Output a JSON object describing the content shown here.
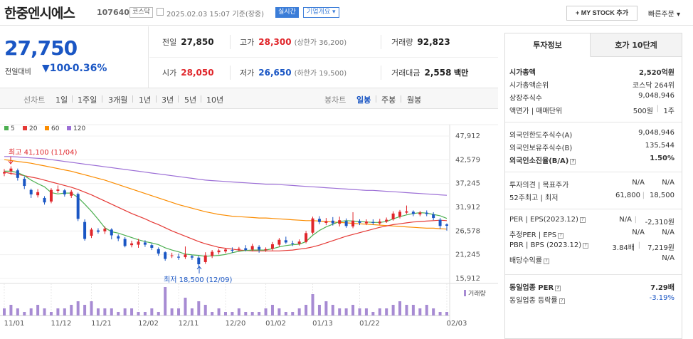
{
  "header": {
    "name": "한중엔시에스",
    "code": "107640",
    "market_tag": "코스닥",
    "date_text": "2025.02.03 15:07 기준(장중)",
    "live_label": "실시간",
    "corp_overview_label": "기업개요",
    "my_stock_label": "+ MY STOCK 추가",
    "quick_order_label": "빠른주문"
  },
  "price": {
    "current": "27,750",
    "change_label": "전일대비",
    "change_amount": "▼100",
    "change_percent": "-0.36%"
  },
  "stats": {
    "prev_close": {
      "label": "전일",
      "value": "27,850"
    },
    "high": {
      "label": "고가",
      "value": "28,300",
      "sub": "(상한가 36,200)"
    },
    "volume": {
      "label": "거래량",
      "value": "92,823"
    },
    "open": {
      "label": "시가",
      "value": "28,050"
    },
    "low": {
      "label": "저가",
      "value": "26,650",
      "sub": "(하한가 19,500)"
    },
    "amount": {
      "label": "거래대금",
      "value": "2,558",
      "unit": "백만"
    }
  },
  "chart_toolbar": {
    "line_chart_label": "선차트",
    "periods": [
      "1일",
      "1주일",
      "3개월",
      "1년",
      "3년",
      "5년",
      "10년"
    ],
    "candle_chart_label": "봉차트",
    "candle_periods": [
      "일봉",
      "주봉",
      "월봉"
    ],
    "active_candle": "일봉"
  },
  "ma_legend": [
    {
      "label": "5",
      "color": "#4caf50"
    },
    {
      "label": "20",
      "color": "#e53935"
    },
    {
      "label": "60",
      "color": "#fb8c00"
    },
    {
      "label": "120",
      "color": "#9c6fd6"
    }
  ],
  "chart_data": {
    "type": "candlestick",
    "y_ticks": [
      "47,912",
      "42,579",
      "37,245",
      "31,912",
      "26,578",
      "21,245",
      "15,912"
    ],
    "ylim": [
      15912,
      47912
    ],
    "x_ticks": [
      "11/01",
      "11/12",
      "11/21",
      "12/02",
      "12/11",
      "12/20",
      "01/02",
      "01/13",
      "01/22",
      "02/03"
    ],
    "high_annotation": "최고 41,100 (11/04)",
    "low_annotation": "최저 18,500 (12/09)",
    "volume_legend": "거래량",
    "candles": [
      {
        "o": 39500,
        "c": 39800,
        "h": 40500,
        "l": 38900
      },
      {
        "o": 40000,
        "c": 40600,
        "h": 41100,
        "l": 39200
      },
      {
        "o": 40200,
        "c": 38500,
        "h": 40600,
        "l": 37900
      },
      {
        "o": 38300,
        "c": 36700,
        "h": 38800,
        "l": 36000
      },
      {
        "o": 35800,
        "c": 34800,
        "h": 36100,
        "l": 34000
      },
      {
        "o": 34600,
        "c": 35300,
        "h": 36000,
        "l": 34100
      },
      {
        "o": 34000,
        "c": 33000,
        "h": 34400,
        "l": 32500
      },
      {
        "o": 33200,
        "c": 35800,
        "h": 36200,
        "l": 32800
      },
      {
        "o": 35600,
        "c": 35900,
        "h": 36800,
        "l": 35100
      },
      {
        "o": 35700,
        "c": 34800,
        "h": 36000,
        "l": 34300
      },
      {
        "o": 34500,
        "c": 35400,
        "h": 35800,
        "l": 34000
      },
      {
        "o": 34900,
        "c": 29300,
        "h": 35200,
        "l": 28800
      },
      {
        "o": 28600,
        "c": 24800,
        "h": 29200,
        "l": 24400
      },
      {
        "o": 25500,
        "c": 26900,
        "h": 27300,
        "l": 25000
      },
      {
        "o": 26700,
        "c": 26400,
        "h": 27200,
        "l": 26000
      },
      {
        "o": 26500,
        "c": 27100,
        "h": 27600,
        "l": 25900
      },
      {
        "o": 26900,
        "c": 25600,
        "h": 27200,
        "l": 24700
      },
      {
        "o": 25400,
        "c": 24900,
        "h": 25800,
        "l": 24300
      },
      {
        "o": 24800,
        "c": 23200,
        "h": 25200,
        "l": 22900
      },
      {
        "o": 23400,
        "c": 23800,
        "h": 24400,
        "l": 22900
      },
      {
        "o": 23500,
        "c": 24200,
        "h": 24800,
        "l": 22800
      },
      {
        "o": 24000,
        "c": 23500,
        "h": 24500,
        "l": 23000
      },
      {
        "o": 23400,
        "c": 22800,
        "h": 23800,
        "l": 22300
      },
      {
        "o": 22500,
        "c": 21500,
        "h": 22900,
        "l": 21000
      },
      {
        "o": 21800,
        "c": 20300,
        "h": 22000,
        "l": 19900
      },
      {
        "o": 21000,
        "c": 21100,
        "h": 21700,
        "l": 20500
      },
      {
        "o": 20800,
        "c": 20600,
        "h": 21500,
        "l": 20100
      },
      {
        "o": 20700,
        "c": 21300,
        "h": 23100,
        "l": 20300
      },
      {
        "o": 20900,
        "c": 20600,
        "h": 21200,
        "l": 20100
      },
      {
        "o": 20600,
        "c": 19100,
        "h": 21000,
        "l": 18500
      },
      {
        "o": 19600,
        "c": 21100,
        "h": 21800,
        "l": 19200
      },
      {
        "o": 21000,
        "c": 21900,
        "h": 22300,
        "l": 20500
      },
      {
        "o": 21800,
        "c": 22200,
        "h": 22600,
        "l": 21300
      },
      {
        "o": 22000,
        "c": 22400,
        "h": 22800,
        "l": 21600
      },
      {
        "o": 22300,
        "c": 22200,
        "h": 22900,
        "l": 21700
      },
      {
        "o": 22400,
        "c": 22600,
        "h": 23000,
        "l": 22000
      },
      {
        "o": 22700,
        "c": 22300,
        "h": 23400,
        "l": 22000
      },
      {
        "o": 22400,
        "c": 23200,
        "h": 23700,
        "l": 22000
      },
      {
        "o": 23000,
        "c": 22400,
        "h": 23400,
        "l": 21700
      },
      {
        "o": 22300,
        "c": 22500,
        "h": 22900,
        "l": 21900
      },
      {
        "o": 22600,
        "c": 23600,
        "h": 24100,
        "l": 22200
      },
      {
        "o": 23500,
        "c": 24600,
        "h": 25000,
        "l": 23100
      },
      {
        "o": 24500,
        "c": 24000,
        "h": 25300,
        "l": 23700
      },
      {
        "o": 23900,
        "c": 23800,
        "h": 24400,
        "l": 23200
      },
      {
        "o": 23700,
        "c": 24200,
        "h": 24700,
        "l": 23300
      },
      {
        "o": 24100,
        "c": 26100,
        "h": 26600,
        "l": 23800
      },
      {
        "o": 26200,
        "c": 29400,
        "h": 29800,
        "l": 25800
      },
      {
        "o": 29300,
        "c": 28600,
        "h": 29900,
        "l": 28100
      },
      {
        "o": 28400,
        "c": 28800,
        "h": 29500,
        "l": 27900
      },
      {
        "o": 28900,
        "c": 28300,
        "h": 29700,
        "l": 27800
      },
      {
        "o": 28200,
        "c": 29000,
        "h": 29800,
        "l": 27600
      },
      {
        "o": 28800,
        "c": 27700,
        "h": 29400,
        "l": 27300
      },
      {
        "o": 27600,
        "c": 28900,
        "h": 30800,
        "l": 27200
      },
      {
        "o": 28800,
        "c": 28400,
        "h": 29200,
        "l": 27900
      },
      {
        "o": 28300,
        "c": 28700,
        "h": 29200,
        "l": 27900
      },
      {
        "o": 28600,
        "c": 28400,
        "h": 29200,
        "l": 28000
      },
      {
        "o": 28300,
        "c": 28700,
        "h": 29300,
        "l": 28000
      },
      {
        "o": 28700,
        "c": 29100,
        "h": 29600,
        "l": 28400
      },
      {
        "o": 29200,
        "c": 30500,
        "h": 31000,
        "l": 28900
      },
      {
        "o": 29800,
        "c": 30900,
        "h": 31300,
        "l": 29400
      },
      {
        "o": 30700,
        "c": 31000,
        "h": 32300,
        "l": 30400
      },
      {
        "o": 30900,
        "c": 30400,
        "h": 31200,
        "l": 29900
      },
      {
        "o": 30300,
        "c": 30700,
        "h": 31100,
        "l": 29900
      },
      {
        "o": 30700,
        "c": 30400,
        "h": 31200,
        "l": 29900
      },
      {
        "o": 30300,
        "c": 29500,
        "h": 30800,
        "l": 29000
      },
      {
        "o": 29100,
        "c": 27700,
        "h": 29500,
        "l": 27000
      },
      {
        "o": 28050,
        "c": 27750,
        "h": 28300,
        "l": 26650
      }
    ],
    "volumes": [
      2,
      3,
      2,
      1,
      2,
      3,
      2,
      1,
      2,
      2,
      3,
      4,
      3,
      4,
      2,
      2,
      2,
      1,
      2,
      2,
      1,
      1,
      2,
      1,
      8,
      2,
      2,
      5,
      2,
      4,
      3,
      1,
      2,
      1,
      1,
      2,
      1,
      1,
      1,
      2,
      3,
      2,
      1,
      1,
      2,
      3,
      6,
      3,
      4,
      3,
      2,
      2,
      3,
      2,
      2,
      1,
      2,
      2,
      3,
      4,
      3,
      3,
      2,
      3,
      2,
      1,
      1
    ],
    "ma5": [
      40000,
      40000,
      39700,
      39000,
      38000,
      37200,
      36500,
      35200,
      34900,
      35100,
      35100,
      34100,
      32600,
      31000,
      29200,
      27300,
      26400,
      26100,
      25600,
      25100,
      24600,
      24200,
      23900,
      23500,
      22800,
      22300,
      21900,
      21400,
      21200,
      21100,
      20900,
      21000,
      21100,
      21300,
      21700,
      22000,
      22200,
      22300,
      22300,
      22300,
      22600,
      23000,
      23300,
      23500,
      23600,
      24200,
      25600,
      26700,
      27500,
      28100,
      28700,
      28900,
      28800,
      28700,
      28600,
      28500,
      28500,
      28700,
      29300,
      29800,
      30200,
      30500,
      30700,
      30600,
      30300,
      30000,
      29400
    ],
    "ma20": [
      39800,
      39500,
      39300,
      39000,
      38700,
      38400,
      38000,
      37600,
      37200,
      36800,
      36400,
      35900,
      35300,
      34700,
      34000,
      33300,
      32600,
      31900,
      31200,
      30500,
      29900,
      29300,
      28600,
      28000,
      27300,
      26600,
      26000,
      25400,
      24800,
      24200,
      23700,
      23300,
      22900,
      22700,
      22500,
      22300,
      22200,
      22100,
      22100,
      22100,
      22100,
      22100,
      22200,
      22300,
      22500,
      22700,
      23000,
      23400,
      23900,
      24400,
      24900,
      25400,
      25800,
      26200,
      26600,
      27000,
      27400,
      27700,
      28000,
      28200,
      28400,
      28600,
      28700,
      28800,
      28900,
      29000,
      28900
    ],
    "ma60": [
      42600,
      42400,
      42200,
      42000,
      41800,
      41500,
      41200,
      40900,
      40600,
      40300,
      40000,
      39600,
      39200,
      38800,
      38400,
      38000,
      37500,
      37000,
      36500,
      36000,
      35500,
      35000,
      34500,
      34000,
      33500,
      33000,
      32500,
      32100,
      31700,
      31300,
      30900,
      30600,
      30300,
      30100,
      29900,
      29800,
      29700,
      29600,
      29500,
      29500,
      29400,
      29300,
      29200,
      29100,
      29000,
      28900,
      28900,
      28800,
      28700,
      28600,
      28500,
      28400,
      28300,
      28200,
      28100,
      28000,
      27900,
      27800,
      27700,
      27600,
      27500,
      27400,
      27300,
      27200,
      27200,
      27100,
      27000
    ],
    "ma120": [
      43300,
      43300,
      43200,
      43100,
      43000,
      42900,
      42800,
      42600,
      42400,
      42200,
      42000,
      41800,
      41600,
      41400,
      41200,
      41000,
      40800,
      40600,
      40400,
      40200,
      40000,
      39800,
      39600,
      39400,
      39200,
      39000,
      38800,
      38600,
      38400,
      38200,
      38000,
      37900,
      37800,
      37700,
      37600,
      37500,
      37400,
      37300,
      37200,
      37100,
      37100,
      37000,
      36900,
      36800,
      36700,
      36600,
      36500,
      36400,
      36300,
      36200,
      36100,
      36000,
      35900,
      35800,
      35700,
      35700,
      35600,
      35500,
      35400,
      35300,
      35200,
      35100,
      35000,
      34900,
      34800,
      34700,
      34600
    ]
  },
  "right_panel": {
    "tabs": [
      "투자정보",
      "호가 10단계"
    ],
    "market_cap": {
      "label": "시가총액",
      "value": "2,520억원"
    },
    "market_cap_rank": {
      "label": "시가총액순위",
      "value": "코스닥 264위"
    },
    "shares": {
      "label": "상장주식수",
      "value": "9,048,946"
    },
    "par_unit": {
      "label": "액면가 | 매매단위",
      "value1": "500원",
      "value2": "1주"
    },
    "foreign_limit": {
      "label": "외국인한도주식수(A)",
      "value": "9,048,946"
    },
    "foreign_held": {
      "label": "외국인보유주식수(B)",
      "value": "135,544"
    },
    "foreign_ratio": {
      "label": "외국인소진율(B/A)",
      "value": "1.50%"
    },
    "opinion": {
      "label": "투자의견 | 목표주가",
      "value1": "N/A",
      "value2": "N/A"
    },
    "week52": {
      "label": "52주최고 | 최저",
      "value1": "61,800",
      "value2": "18,500"
    },
    "per_eps": {
      "label": "PER | EPS(2023.12)",
      "value1": "N/A",
      "value2": "-2,310원"
    },
    "est_per_eps": {
      "label": "추정PER | EPS",
      "value1": "N/A",
      "value2": "N/A"
    },
    "pbr_bps": {
      "label": "PBR | BPS (2023.12)",
      "value1": "3.84배",
      "value2": "7,219원"
    },
    "dividend": {
      "label": "배당수익률",
      "value": "N/A"
    },
    "sector_per": {
      "label": "동일업종 PER",
      "value": "7.29배"
    },
    "sector_change": {
      "label": "동일업종 등락률",
      "value": "-3.19%"
    }
  }
}
